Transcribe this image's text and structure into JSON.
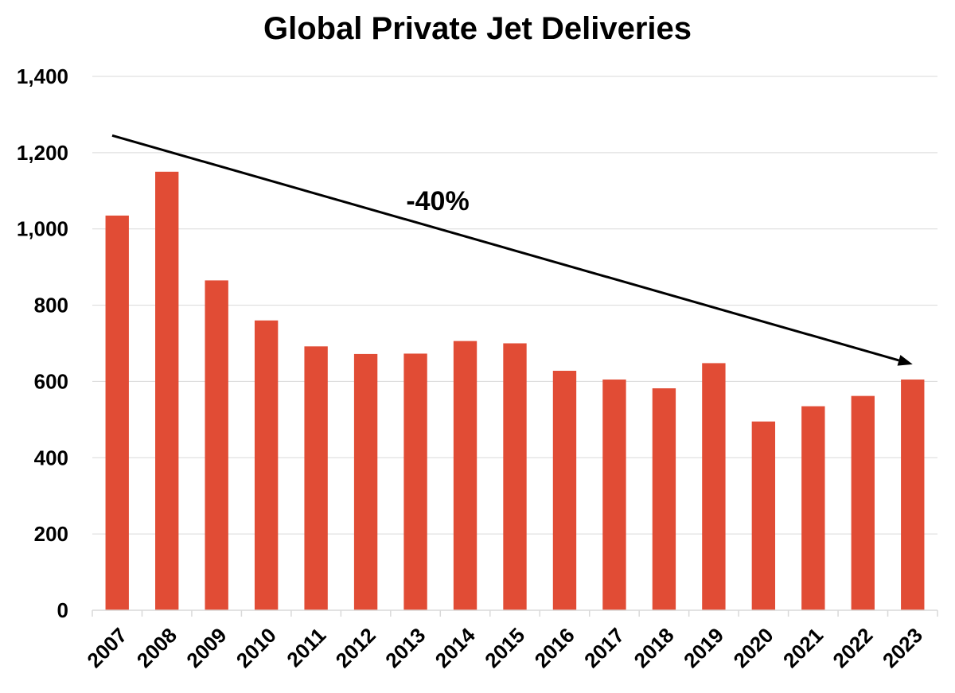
{
  "chart_data": {
    "type": "bar",
    "title": "Global Private Jet Deliveries",
    "xlabel": "",
    "ylabel": "",
    "categories": [
      "2007",
      "2008",
      "2009",
      "2010",
      "2011",
      "2012",
      "2013",
      "2014",
      "2015",
      "2016",
      "2017",
      "2018",
      "2019",
      "2020",
      "2021",
      "2022",
      "2023"
    ],
    "values": [
      1035,
      1150,
      865,
      760,
      692,
      672,
      673,
      706,
      700,
      628,
      605,
      582,
      648,
      495,
      535,
      562,
      605
    ],
    "ylim": [
      0,
      1400
    ],
    "yticks": [
      "0",
      "200",
      "400",
      "600",
      "800",
      "1,000",
      "1,200",
      "1,400"
    ],
    "grid": true,
    "bar_color": "#e14c35",
    "annotation": {
      "text": "-40%",
      "arrow_from_value": 1245,
      "arrow_to_value": 645
    }
  }
}
